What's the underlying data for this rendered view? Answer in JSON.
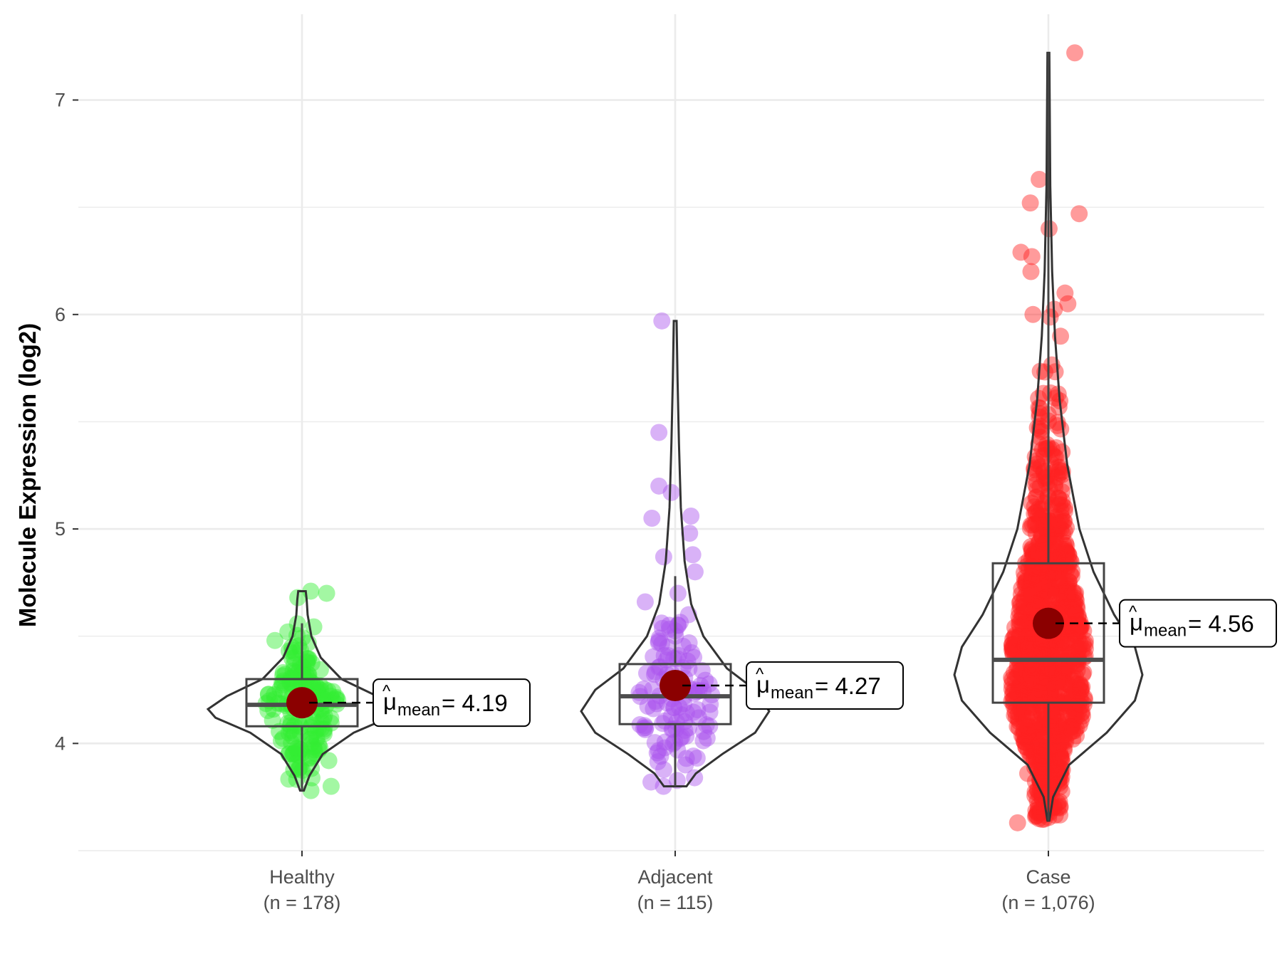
{
  "chart_data": {
    "type": "violin",
    "ylabel": "Molecule Expression (log2)",
    "xlabel": "",
    "ylim": [
      3.5,
      7.4
    ],
    "yticks": [
      4,
      5,
      6,
      7
    ],
    "grid": true,
    "categories": [
      {
        "name": "Healthy",
        "n_label": "(n = 178)",
        "n": 178,
        "color": "#33ee33",
        "mean": 4.19,
        "mean_label": "4.19",
        "box": {
          "q1": 4.08,
          "median": 4.18,
          "q3": 4.3,
          "whisker_low": 3.78,
          "whisker_high": 4.56
        },
        "range": [
          3.78,
          4.71
        ],
        "violin": [
          [
            3.78,
            0.02
          ],
          [
            3.85,
            0.08
          ],
          [
            3.95,
            0.22
          ],
          [
            4.05,
            0.55
          ],
          [
            4.12,
            0.92
          ],
          [
            4.16,
            1.0
          ],
          [
            4.22,
            0.8
          ],
          [
            4.3,
            0.42
          ],
          [
            4.4,
            0.2
          ],
          [
            4.5,
            0.1
          ],
          [
            4.6,
            0.06
          ],
          [
            4.67,
            0.05
          ],
          [
            4.71,
            0.04
          ]
        ],
        "outliers": [
          3.78,
          3.8,
          3.88,
          3.92,
          4.71,
          4.7,
          4.68,
          4.52,
          4.48
        ]
      },
      {
        "name": "Adjacent",
        "n_label": "(n = 115)",
        "n": 115,
        "color": "#aa55ee",
        "mean": 4.27,
        "mean_label": "4.27",
        "box": {
          "q1": 4.09,
          "median": 4.22,
          "q3": 4.37,
          "whisker_low": 3.8,
          "whisker_high": 4.78
        },
        "range": [
          3.8,
          5.97
        ],
        "violin": [
          [
            3.8,
            0.12
          ],
          [
            3.86,
            0.22
          ],
          [
            3.95,
            0.5
          ],
          [
            4.05,
            0.85
          ],
          [
            4.15,
            1.0
          ],
          [
            4.25,
            0.85
          ],
          [
            4.35,
            0.55
          ],
          [
            4.5,
            0.3
          ],
          [
            4.65,
            0.17
          ],
          [
            4.85,
            0.1
          ],
          [
            5.1,
            0.06
          ],
          [
            5.4,
            0.04
          ],
          [
            5.7,
            0.025
          ],
          [
            5.97,
            0.015
          ]
        ],
        "outliers": [
          3.8,
          3.82,
          3.84,
          3.9,
          4.5,
          4.66,
          4.7,
          4.8,
          4.87,
          4.88,
          4.98,
          5.05,
          5.06,
          5.17,
          5.2,
          5.45,
          5.97
        ]
      },
      {
        "name": "Case",
        "n_label": "(n = 1,076)",
        "n": 1076,
        "color": "#ff2222",
        "mean": 4.56,
        "mean_label": "4.56",
        "box": {
          "q1": 4.19,
          "median": 4.39,
          "q3": 4.84,
          "whisker_low": 3.64,
          "whisker_high": 7.22
        },
        "range": [
          3.64,
          7.22
        ],
        "violin": [
          [
            3.64,
            0.01
          ],
          [
            3.75,
            0.05
          ],
          [
            3.9,
            0.22
          ],
          [
            4.05,
            0.62
          ],
          [
            4.2,
            0.92
          ],
          [
            4.32,
            1.0
          ],
          [
            4.45,
            0.92
          ],
          [
            4.6,
            0.7
          ],
          [
            4.8,
            0.48
          ],
          [
            5.0,
            0.33
          ],
          [
            5.3,
            0.2
          ],
          [
            5.6,
            0.12
          ],
          [
            5.9,
            0.07
          ],
          [
            6.2,
            0.04
          ],
          [
            6.6,
            0.02
          ],
          [
            7.22,
            0.01
          ]
        ],
        "outliers": [
          3.63,
          3.86,
          6.0,
          6.05,
          6.1,
          6.2,
          6.27,
          6.29,
          6.4,
          6.47,
          6.52,
          6.63,
          7.22
        ]
      }
    ]
  }
}
